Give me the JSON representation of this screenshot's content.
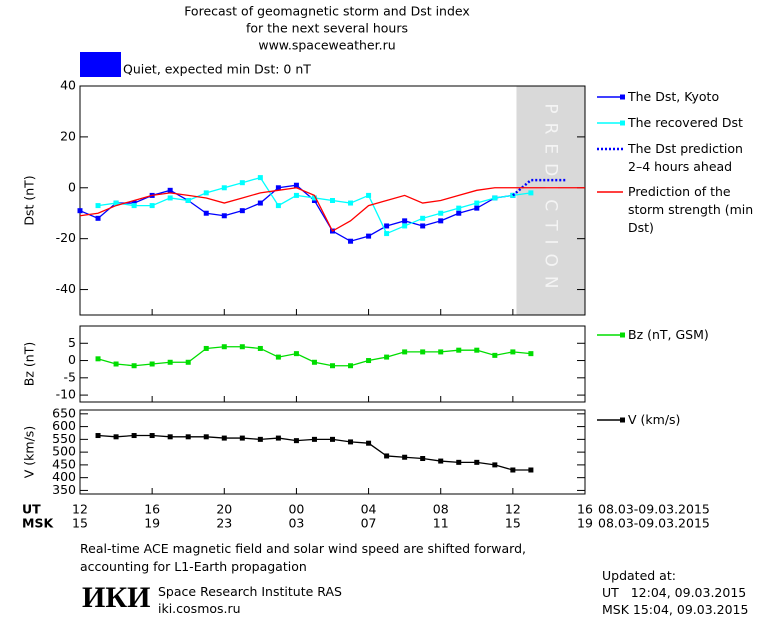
{
  "header": {
    "title": "Forecast of geomagnetic storm and Dst index",
    "subtitle": "for the next several hours",
    "site": "www.spaceweather.ru"
  },
  "status": {
    "text": "Quiet, expected min Dst: 0 nT",
    "color": "#0000ff"
  },
  "chart_data": [
    {
      "type": "line",
      "y_label": "Dst (nT)",
      "xlim": [
        0,
        28
      ],
      "ylim": [
        -50,
        40
      ],
      "yticks": [
        -40,
        -20,
        0,
        20,
        40
      ],
      "prediction_zone": {
        "xlim": [
          24.2,
          28
        ],
        "label": "PREDICTION",
        "color": "#d9d9d9"
      },
      "series": [
        {
          "name": "The Dst, Kyoto",
          "color": "#0000ff",
          "marker": "square",
          "dash": false,
          "x": [
            0,
            1,
            2,
            3,
            4,
            5,
            6,
            7,
            8,
            9,
            10,
            11,
            12,
            13,
            14,
            15,
            16,
            17,
            18,
            19,
            20,
            21,
            22,
            23,
            24
          ],
          "values": [
            -9,
            -12,
            -6,
            -6,
            -3,
            -1,
            -5,
            -10,
            -11,
            -9,
            -6,
            0,
            1,
            -5,
            -17,
            -21,
            -19,
            -15,
            -13,
            -15,
            -13,
            -10,
            -8,
            -4,
            -3
          ]
        },
        {
          "name": "The recovered Dst",
          "color": "#00ffff",
          "marker": "square",
          "dash": false,
          "x": [
            1,
            2,
            3,
            4,
            5,
            6,
            7,
            8,
            9,
            10,
            11,
            12,
            13,
            14,
            15,
            16,
            17,
            18,
            19,
            20,
            21,
            22,
            23,
            24,
            25
          ],
          "values": [
            -7,
            -6,
            -7,
            -7,
            -4,
            -5,
            -2,
            0,
            2,
            4,
            -7,
            -3,
            -4,
            -5,
            -6,
            -3,
            -18,
            -15,
            -12,
            -10,
            -8,
            -6,
            -4,
            -3,
            -2
          ]
        },
        {
          "name": "The Dst prediction 2–4 hours ahead",
          "color": "#0000ff",
          "marker": "none",
          "dash": true,
          "x": [
            24,
            25,
            26,
            27
          ],
          "values": [
            -3,
            3,
            3,
            3
          ]
        },
        {
          "name": "Prediction of the storm strength (min Dst)",
          "color": "#ff0000",
          "marker": "none",
          "dash": false,
          "x": [
            0,
            1,
            2,
            3,
            4,
            5,
            6,
            7,
            8,
            9,
            10,
            11,
            12,
            13,
            14,
            15,
            16,
            17,
            18,
            19,
            20,
            21,
            22,
            23,
            24,
            28
          ],
          "values": [
            -11,
            -10,
            -7,
            -5,
            -3,
            -2,
            -3,
            -4,
            -6,
            -4,
            -2,
            -1,
            0,
            -3,
            -17,
            -13,
            -7,
            -5,
            -3,
            -6,
            -5,
            -3,
            -1,
            0,
            0,
            0
          ]
        }
      ]
    },
    {
      "type": "line",
      "y_label": "Bz (nT)",
      "xlim": [
        0,
        28
      ],
      "ylim": [
        -12,
        10
      ],
      "yticks": [
        -10,
        -5,
        0,
        5
      ],
      "series": [
        {
          "name": "Bz (nT, GSM)",
          "color": "#00dd00",
          "marker": "square",
          "dash": false,
          "x": [
            1,
            2,
            3,
            4,
            5,
            6,
            7,
            8,
            9,
            10,
            11,
            12,
            13,
            14,
            15,
            16,
            17,
            18,
            19,
            20,
            21,
            22,
            23,
            24,
            25
          ],
          "values": [
            0.5,
            -1,
            -1.5,
            -1,
            -0.5,
            -0.5,
            3.5,
            4,
            4,
            3.5,
            1,
            2,
            -0.5,
            -1.5,
            -1.5,
            0,
            1,
            2.5,
            2.5,
            2.5,
            3,
            3,
            1.5,
            2.5,
            2
          ]
        }
      ]
    },
    {
      "type": "line",
      "y_label": "V (km/s)",
      "xlim": [
        0,
        28
      ],
      "ylim": [
        336,
        665
      ],
      "yticks": [
        350,
        400,
        450,
        500,
        550,
        600,
        650
      ],
      "series": [
        {
          "name": "V (km/s)",
          "color": "#000000",
          "marker": "square",
          "dash": false,
          "x": [
            1,
            2,
            3,
            4,
            5,
            6,
            7,
            8,
            9,
            10,
            11,
            12,
            13,
            14,
            15,
            16,
            17,
            18,
            19,
            20,
            21,
            22,
            23,
            24,
            25
          ],
          "values": [
            565,
            560,
            565,
            565,
            560,
            560,
            560,
            555,
            555,
            550,
            555,
            545,
            550,
            550,
            540,
            535,
            485,
            480,
            475,
            465,
            460,
            460,
            450,
            430,
            430
          ]
        }
      ],
      "x_axis_label": "UT",
      "x2_axis_label": "MSK",
      "date_range": "08.03-09.03.2015",
      "xticks": [
        {
          "value": 0,
          "label": "12"
        },
        {
          "value": 4,
          "label": "16"
        },
        {
          "value": 8,
          "label": "20"
        },
        {
          "value": 12,
          "label": "00"
        },
        {
          "value": 16,
          "label": "04"
        },
        {
          "value": 20,
          "label": "08"
        },
        {
          "value": 24,
          "label": "12"
        },
        {
          "value": 28,
          "label": "16"
        }
      ],
      "x2ticks": [
        {
          "value": 0,
          "label": "15"
        },
        {
          "value": 4,
          "label": "19"
        },
        {
          "value": 8,
          "label": "23"
        },
        {
          "value": 12,
          "label": "03"
        },
        {
          "value": 16,
          "label": "07"
        },
        {
          "value": 20,
          "label": "11"
        },
        {
          "value": 24,
          "label": "15"
        },
        {
          "value": 28,
          "label": "19"
        }
      ]
    }
  ],
  "footer": {
    "note": "Real-time ACE magnetic field and solar wind speed are shifted forward, accounting for L1-Earth propagation",
    "logo": "ИКИ",
    "institute": "Space Research Institute RAS",
    "url": "iki.cosmos.ru",
    "updated_label": "Updated at:",
    "updated_ut": "UT   12:04, 09.03.2015",
    "updated_msk": "MSK 15:04, 09.03.2015"
  }
}
